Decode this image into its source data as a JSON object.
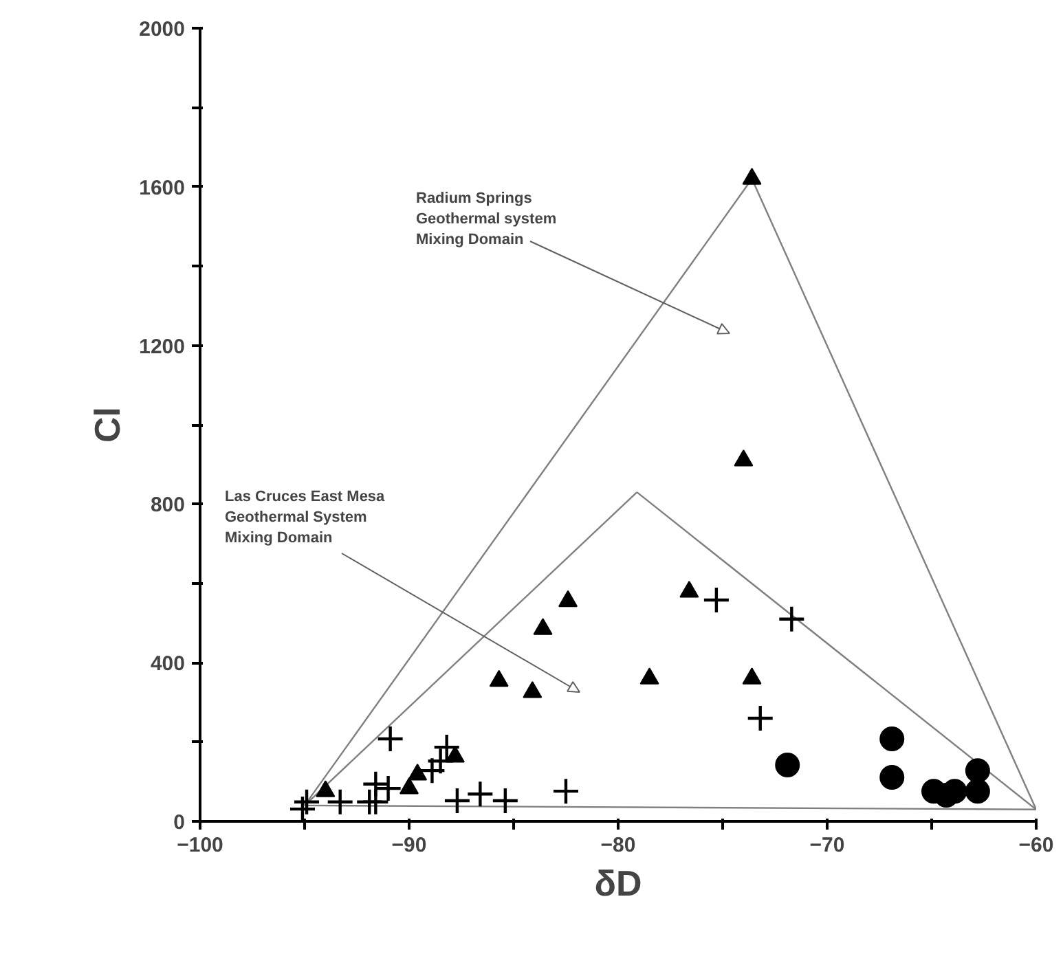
{
  "chart_data": {
    "type": "scatter",
    "xlabel": "δD",
    "ylabel": "Cl",
    "xlim": [
      -100,
      -60
    ],
    "ylim": [
      0,
      2000
    ],
    "xticks": [
      -100,
      {
        "value": -95,
        "label": null
      },
      -90,
      {
        "value": -85,
        "label": null
      },
      -80,
      {
        "value": -75,
        "label": null
      },
      -70,
      {
        "value": -65,
        "label": null
      },
      -60
    ],
    "yticks": [
      0,
      {
        "value": 200,
        "label": null
      },
      400,
      {
        "value": 600,
        "label": null
      },
      800,
      {
        "value": 1000,
        "label": null
      },
      1200,
      {
        "value": 1400,
        "label": null
      },
      1600,
      {
        "value": 1800,
        "label": null
      },
      2000
    ],
    "grid": false,
    "annotations": [
      "Radium Springs\nGeothermal system\nMixing Domain",
      "Las Cruces East Mesa\nGeothermal System\nMixing Domain"
    ],
    "series": [
      {
        "type": "line",
        "color": "#808080",
        "line_style": "solid",
        "x": [
          -95,
          -73.6
        ],
        "values": [
          40,
          1620
        ]
      },
      {
        "type": "line",
        "color": "#808080",
        "line_style": "solid",
        "x": [
          -73.6,
          -60
        ],
        "values": [
          1620,
          30
        ]
      },
      {
        "type": "line",
        "color": "#808080",
        "line_style": "solid",
        "x": [
          -95,
          -60
        ],
        "values": [
          40,
          30
        ]
      },
      {
        "type": "line",
        "color": "#808080",
        "line_style": "solid",
        "x": [
          -95,
          -79.1
        ],
        "values": [
          40,
          830
        ]
      },
      {
        "type": "line",
        "color": "#808080",
        "line_style": "solid",
        "x": [
          -79.1,
          -60
        ],
        "values": [
          830,
          30
        ]
      },
      {
        "color": "#000000",
        "marker": "triangle",
        "x": [
          -73.6,
          -74.0,
          -76.6,
          -78.5,
          -73.6,
          -82.4,
          -83.6,
          -85.7,
          -84.1,
          -87.8,
          -89.6,
          -90.0,
          -94.0
        ],
        "values": [
          1620,
          910,
          579,
          360,
          360,
          555,
          485,
          354,
          326,
          163,
          118,
          83,
          76
        ]
      },
      {
        "color": "#000000",
        "marker": "cross",
        "x": [
          -75.3,
          -71.7,
          -73.2,
          -90.9,
          -88.2,
          -88.5,
          -88.9,
          -87.7,
          -86.6,
          -85.4,
          -82.5,
          -91.6,
          -91.0,
          -91.6,
          -93.3,
          -94.9,
          -95.1,
          -91.9
        ],
        "values": [
          558,
          510,
          260,
          208,
          187,
          152,
          128,
          52,
          69,
          52,
          76,
          94,
          83,
          49,
          49,
          49,
          31,
          49
        ]
      },
      {
        "color": "#000000",
        "marker": "circle",
        "x": [
          -71.9,
          -66.9,
          -66.9,
          -64.9,
          -63.9,
          -62.8,
          -62.8,
          -64.3
        ],
        "values": [
          142,
          208,
          111,
          76,
          76,
          128,
          76,
          66
        ]
      }
    ]
  }
}
